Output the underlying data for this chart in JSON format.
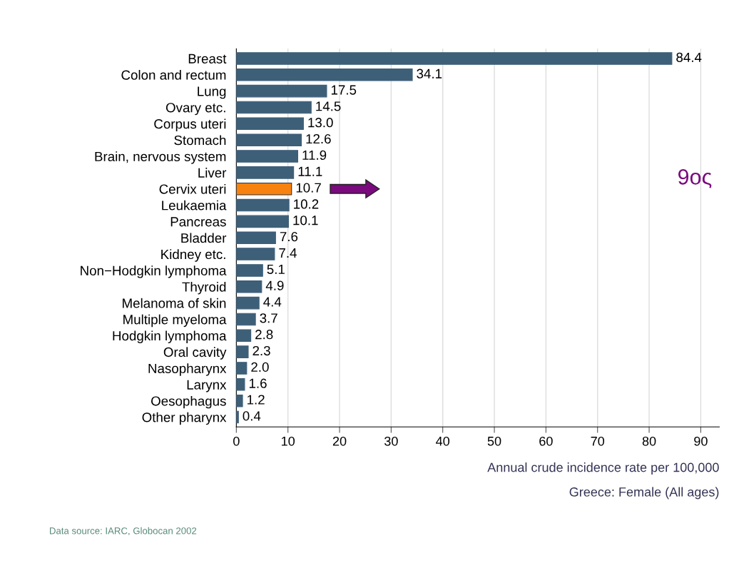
{
  "chart_data": {
    "type": "bar",
    "orientation": "horizontal",
    "xlabel": "Annual crude incidence rate per 100,000",
    "subtitle": "Greece: Female (All ages)",
    "categories": [
      "Breast",
      "Colon and rectum",
      "Lung",
      "Ovary etc.",
      "Corpus uteri",
      "Stomach",
      "Brain, nervous system",
      "Liver",
      "Cervix uteri",
      "Leukaemia",
      "Pancreas",
      "Bladder",
      "Kidney etc.",
      "Non−Hodgkin lymphoma",
      "Thyroid",
      "Melanoma of skin",
      "Multiple myeloma",
      "Hodgkin lymphoma",
      "Oral cavity",
      "Nasopharynx",
      "Larynx",
      "Oesophagus",
      "Other pharynx"
    ],
    "values": [
      84.4,
      34.1,
      17.5,
      14.5,
      13.0,
      12.6,
      11.9,
      11.1,
      10.7,
      10.2,
      10.1,
      7.6,
      7.4,
      5.1,
      4.9,
      4.4,
      3.7,
      2.8,
      2.3,
      2.0,
      1.6,
      1.2,
      0.4
    ],
    "value_labels": [
      "84.4",
      "34.1",
      "17.5",
      "14.5",
      "13.0",
      "12.6",
      "11.9",
      "11.1",
      "10.7",
      "10.2",
      "10.1",
      "7.6",
      "7.4",
      "5.1",
      "4.9",
      "4.4",
      "3.7",
      "2.8",
      "2.3",
      "2.0",
      "1.6",
      "1.2",
      "0.4"
    ],
    "colors": [
      "#3e5f78",
      "#3e5f78",
      "#3e5f78",
      "#3e5f78",
      "#3e5f78",
      "#3e5f78",
      "#3e5f78",
      "#3e5f78",
      "#f7820f",
      "#3e5f78",
      "#3e5f78",
      "#3e5f78",
      "#3e5f78",
      "#3e5f78",
      "#3e5f78",
      "#3e5f78",
      "#3e5f78",
      "#3e5f78",
      "#3e5f78",
      "#3e5f78",
      "#3e5f78",
      "#3e5f78",
      "#3e5f78"
    ],
    "xlim": [
      0,
      93.6
    ],
    "xticks": [
      0,
      10,
      20,
      30,
      40,
      50,
      60,
      70,
      80,
      90
    ],
    "grid": "x",
    "annotations": [
      "9ος",
      "Data source: IARC, Globocan 2002"
    ]
  }
}
